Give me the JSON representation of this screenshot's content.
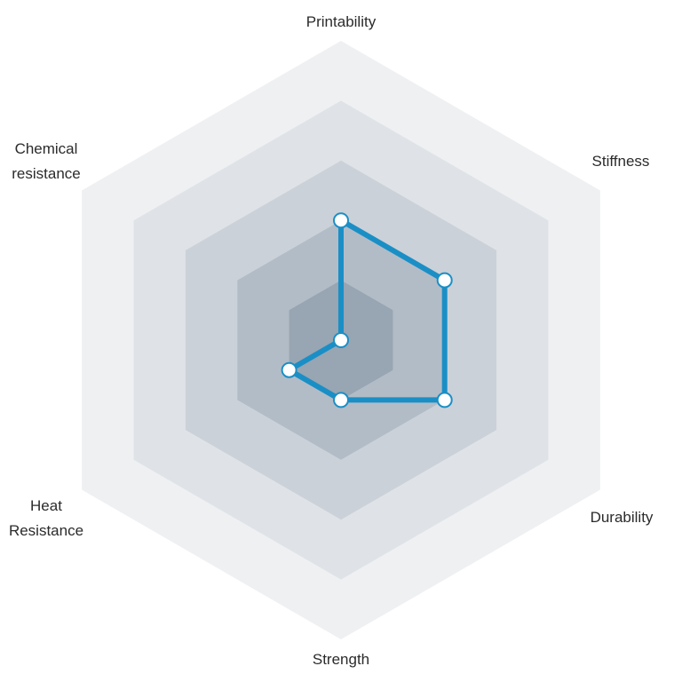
{
  "chart_data": {
    "type": "radar",
    "axes": [
      {
        "lines": [
          "Printability"
        ]
      },
      {
        "lines": [
          "Stiffness"
        ]
      },
      {
        "lines": [
          "Durability"
        ]
      },
      {
        "lines": [
          "Strength"
        ]
      },
      {
        "lines": [
          "Heat",
          "Resistance"
        ]
      },
      {
        "lines": [
          "Chemical",
          "resistance"
        ]
      }
    ],
    "range": [
      0,
      5
    ],
    "levels": 5,
    "values": [
      2,
      2,
      2,
      1,
      1,
      0
    ],
    "colors": {
      "series": "#1a8fc6",
      "marker_fill": "#ffffff",
      "bands": [
        "#eff0f2",
        "#dfe3e8",
        "#cbd1d8",
        "#b2bcc7",
        "#98a5b2"
      ]
    }
  }
}
